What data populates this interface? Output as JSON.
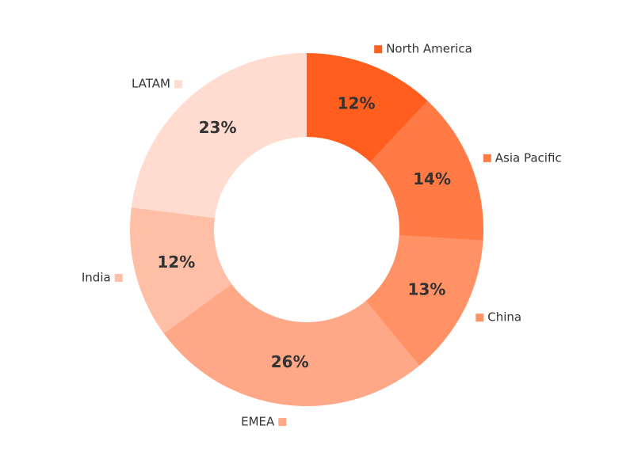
{
  "chart_data": {
    "type": "donut",
    "categories": [
      "North America",
      "Asia Pacific",
      "China",
      "EMEA",
      "India",
      "LATAM"
    ],
    "values": [
      12,
      14,
      13,
      26,
      12,
      23
    ],
    "value_labels": [
      "12%",
      "14%",
      "13%",
      "26%",
      "12%",
      "23%"
    ],
    "colors": [
      "#ff5e1f",
      "#ff7a45",
      "#ff9164",
      "#ffa887",
      "#ffbfa6",
      "#ffdccf"
    ]
  }
}
